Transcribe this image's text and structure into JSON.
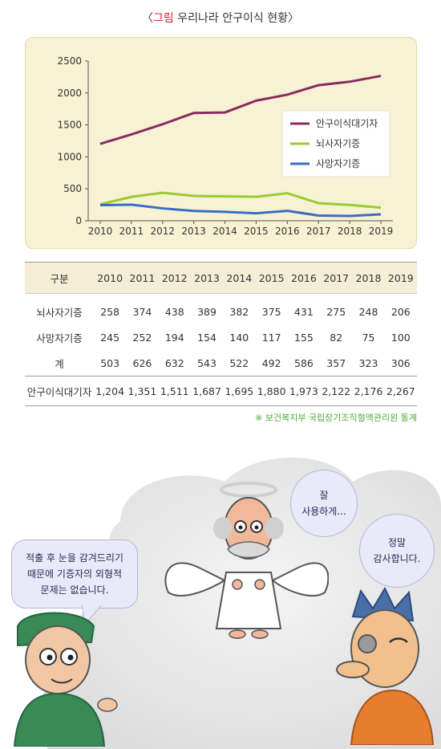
{
  "title": {
    "open": "〈",
    "prefix": "그림",
    "text": "우리나라 안구이식 현황",
    "close": "〉"
  },
  "colors": {
    "waiting": "#8a2b5e",
    "brain_death": "#9acb35",
    "deceased": "#3a6cc4",
    "panel_bg": "#f7f2d4",
    "table_head_bg": "#f3eed5"
  },
  "chart_data": {
    "type": "line",
    "x": [
      2010,
      2011,
      2012,
      2013,
      2014,
      2015,
      2016,
      2017,
      2018,
      2019
    ],
    "ylim": [
      0,
      2500
    ],
    "yticks": [
      0,
      500,
      1000,
      1500,
      2000,
      2500
    ],
    "grid": false,
    "legend_position": "right",
    "series": [
      {
        "name": "안구이식대기자",
        "color": "#8a2b5e",
        "values": [
          1204,
          1351,
          1511,
          1687,
          1695,
          1880,
          1973,
          2122,
          2176,
          2267
        ]
      },
      {
        "name": "뇌사자기증",
        "color": "#9acb35",
        "values": [
          258,
          374,
          438,
          389,
          382,
          375,
          431,
          275,
          248,
          206
        ]
      },
      {
        "name": "사망자기증",
        "color": "#3a6cc4",
        "values": [
          245,
          252,
          194,
          154,
          140,
          117,
          155,
          82,
          75,
          100
        ]
      }
    ]
  },
  "table": {
    "header_label": "구분",
    "years": [
      "2010",
      "2011",
      "2012",
      "2013",
      "2014",
      "2015",
      "2016",
      "2017",
      "2018",
      "2019"
    ],
    "rows": [
      {
        "label": "뇌사자기증",
        "values": [
          "258",
          "374",
          "438",
          "389",
          "382",
          "375",
          "431",
          "275",
          "248",
          "206"
        ]
      },
      {
        "label": "사망자기증",
        "values": [
          "245",
          "252",
          "194",
          "154",
          "140",
          "117",
          "155",
          "82",
          "75",
          "100"
        ]
      },
      {
        "label": "계",
        "values": [
          "503",
          "626",
          "632",
          "543",
          "522",
          "492",
          "586",
          "357",
          "323",
          "306"
        ]
      }
    ],
    "total": {
      "label": "안구이식대기자",
      "values": [
        "1,204",
        "1,351",
        "1,511",
        "1,687",
        "1,695",
        "1,880",
        "1,973",
        "2,122",
        "2,176",
        "2,267"
      ]
    }
  },
  "source": "※ 보건복지부 국립장기조직혈액관리원 통계",
  "bubbles": {
    "doctor_line1": "적출 후 눈을 감겨드리기",
    "doctor_line2": "때문에 기증자의 외형적",
    "doctor_line3": "문제는 없습니다.",
    "angel_line1": "잘",
    "angel_line2": "사용하게...",
    "patient_line1": "정말",
    "patient_line2": "감사합니다."
  },
  "figures": {
    "doctor": "doctor-illustration",
    "angel": "angel-illustration",
    "patient": "patient-illustration"
  }
}
